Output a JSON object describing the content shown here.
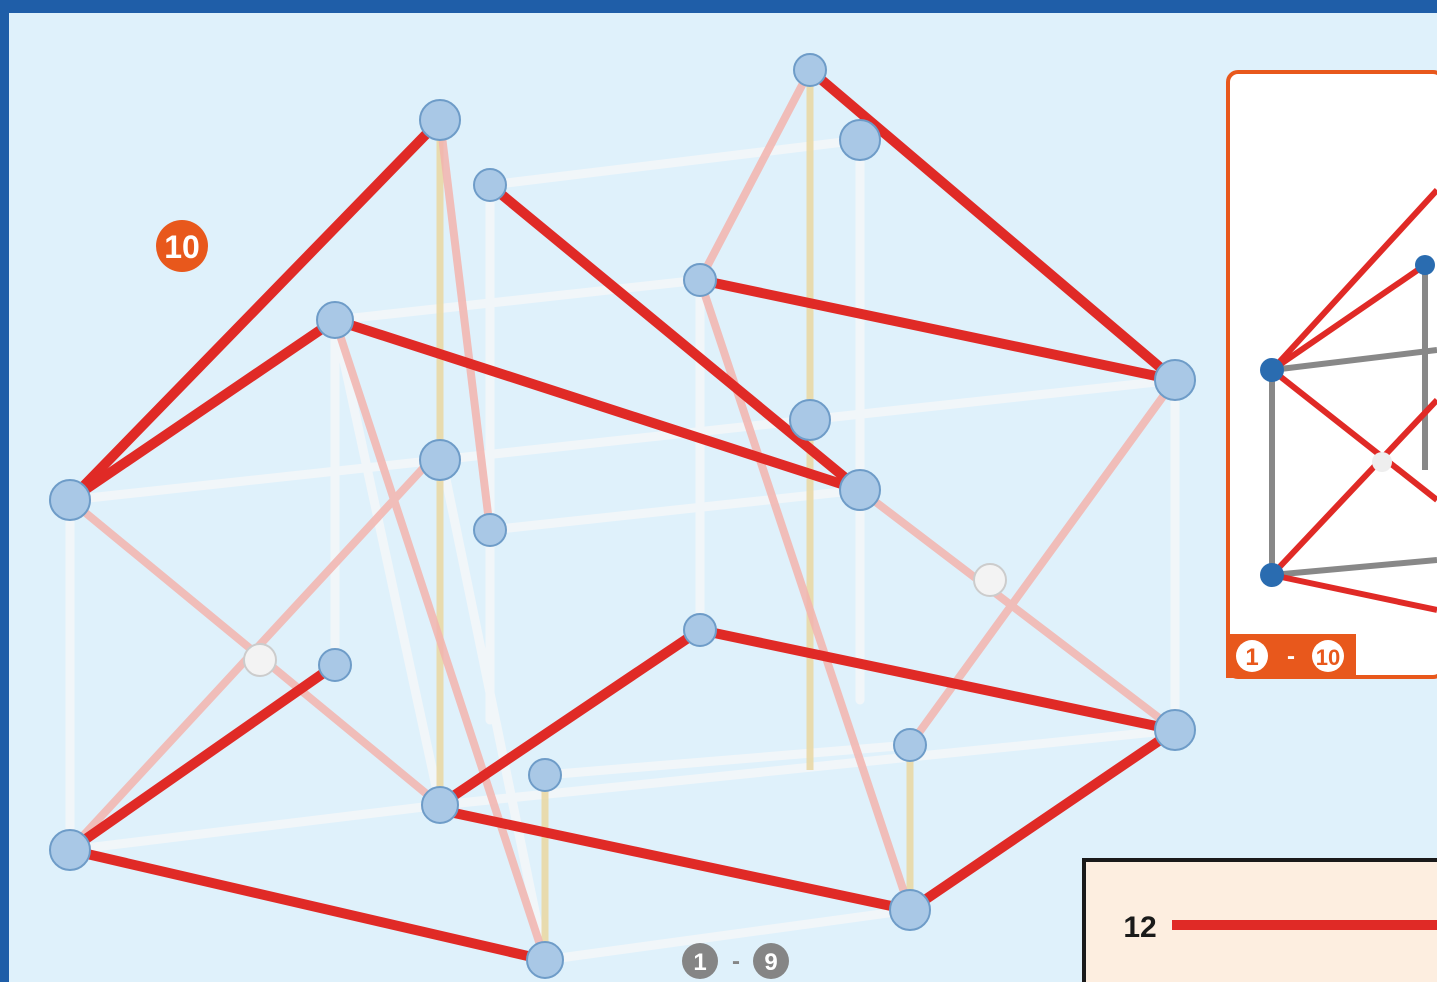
{
  "step": "10",
  "inset": {
    "range_start": "1",
    "separator": "-",
    "range_end": "10"
  },
  "bottom_range": {
    "range_start": "1",
    "separator": "-",
    "range_end": "9"
  },
  "parts": [
    {
      "count": "12"
    }
  ]
}
